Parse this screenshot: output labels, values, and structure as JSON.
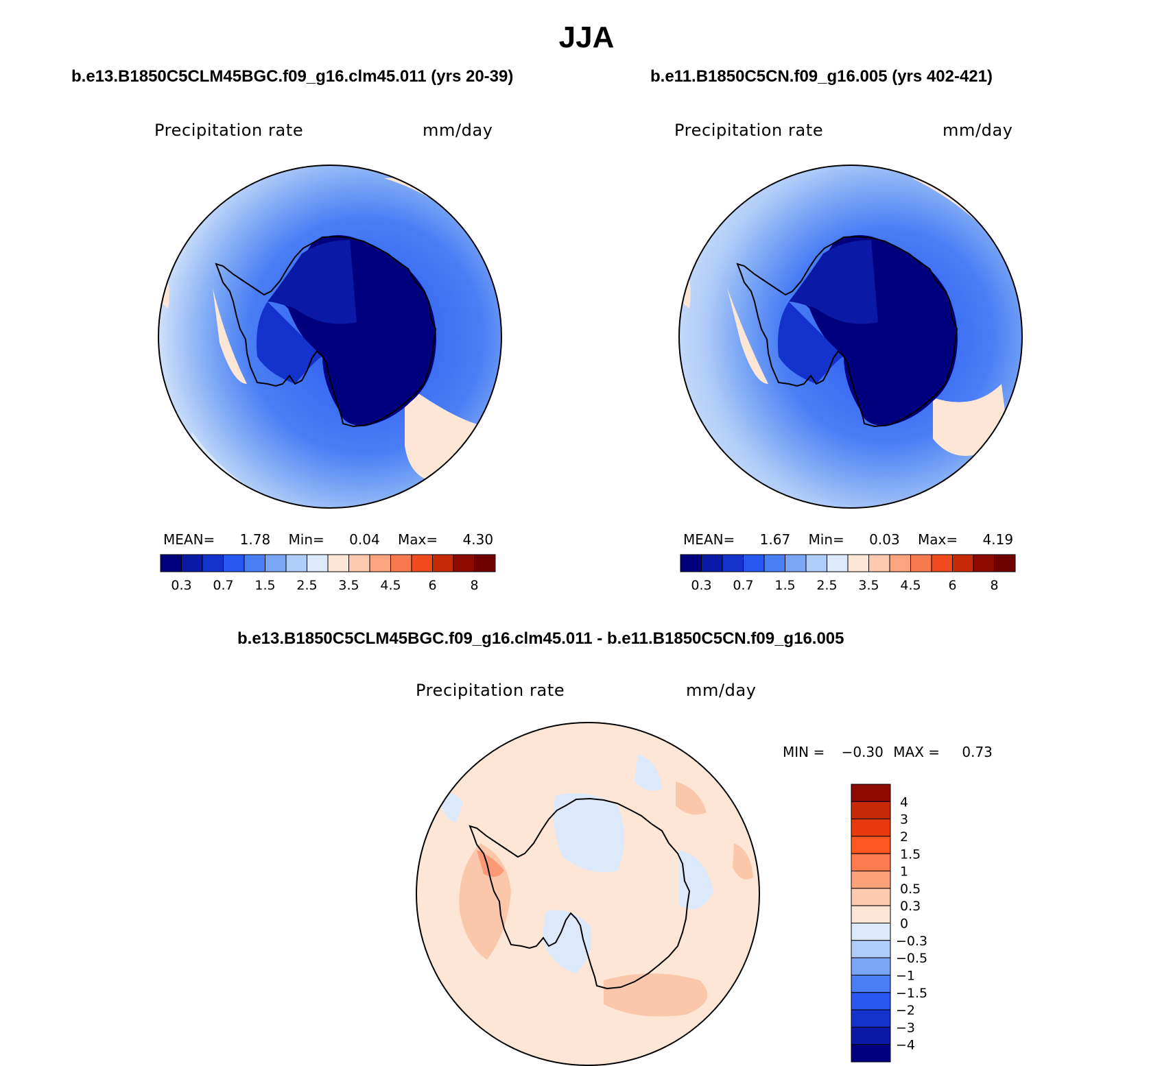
{
  "title": "JJA",
  "panels": [
    {
      "case_title": "b.e13.B1850C5CLM45BGC.f09_g16.clm45.011 (yrs 20-39)",
      "variable": "Precipitation rate",
      "units": "mm/day",
      "stats": {
        "mean_label": "MEAN=",
        "mean": "1.78",
        "min_label": "Min=",
        "min": "0.04",
        "max_label": "Max=",
        "max": "4.30"
      }
    },
    {
      "case_title": "b.e11.B1850C5CN.f09_g16.005 (yrs 402-421)",
      "variable": "Precipitation rate",
      "units": "mm/day",
      "stats": {
        "mean_label": "MEAN=",
        "mean": "1.67",
        "min_label": "Min=",
        "min": "0.03",
        "max_label": "Max=",
        "max": "4.19"
      }
    }
  ],
  "diff_panel": {
    "case_title": "b.e13.B1850C5CLM45BGC.f09_g16.clm45.011 - b.e11.B1850C5CN.f09_g16.005",
    "variable": "Precipitation rate",
    "units": "mm/day",
    "stats": {
      "min_label": "MIN =",
      "min": "−0.30",
      "max_label": "MAX =",
      "max": "0.73"
    }
  },
  "abs_colorbar": {
    "colors": [
      "#00007f",
      "#0a1aa6",
      "#1432cc",
      "#2856f0",
      "#4a7ef5",
      "#7aa6f5",
      "#b0ccf8",
      "#dce9fb",
      "#fde6d6",
      "#fdcab0",
      "#fba480",
      "#f77a4f",
      "#f04a1e",
      "#c82a08",
      "#8c0a00",
      "#700000"
    ],
    "labels": [
      "0.3",
      "0.7",
      "1.5",
      "2.5",
      "3.5",
      "4.5",
      "6",
      "8"
    ]
  },
  "diff_colorbar": {
    "colors": [
      "#8c0a00",
      "#c82a08",
      "#e8390e",
      "#fd5722",
      "#fb7a4e",
      "#fba27a",
      "#fdcab0",
      "#fde6d6",
      "#dce9fb",
      "#b0ccf8",
      "#7aa6f5",
      "#4a7ef5",
      "#2856f0",
      "#1432cc",
      "#0a1aa6",
      "#00007f"
    ],
    "labels": [
      "4",
      "3",
      "2",
      "1.5",
      "1",
      "0.5",
      "0.3",
      "0",
      "−0.3",
      "−0.5",
      "−1",
      "−1.5",
      "−2",
      "−3",
      "−4"
    ]
  }
}
